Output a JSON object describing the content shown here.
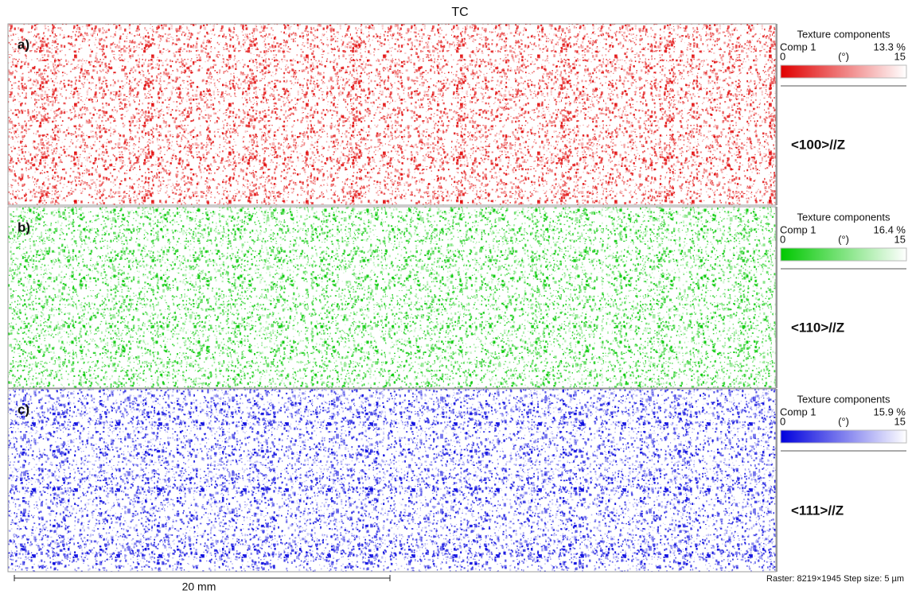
{
  "title": "TC",
  "panels": [
    {
      "label": "a)",
      "legend_title": "Texture components",
      "component": "Comp 1",
      "fraction": "13.3 %",
      "range_min": "0",
      "range_unit": "(°)",
      "range_max": "15",
      "orientation": "<100>//Z"
    },
    {
      "label": "b)",
      "legend_title": "Texture components",
      "component": "Comp 1",
      "fraction": "16.4 %",
      "range_min": "0",
      "range_unit": "(°)",
      "range_max": "15",
      "orientation": "<110>//Z"
    },
    {
      "label": "c)",
      "legend_title": "Texture components",
      "component": "Comp 1",
      "fraction": "15.9 %",
      "range_min": "0",
      "range_unit": "(°)",
      "range_max": "15",
      "orientation": "<111>//Z"
    }
  ],
  "scale_bar": "20 mm",
  "footer": "Raster: 8219×1945   Step size: 5 µm"
}
